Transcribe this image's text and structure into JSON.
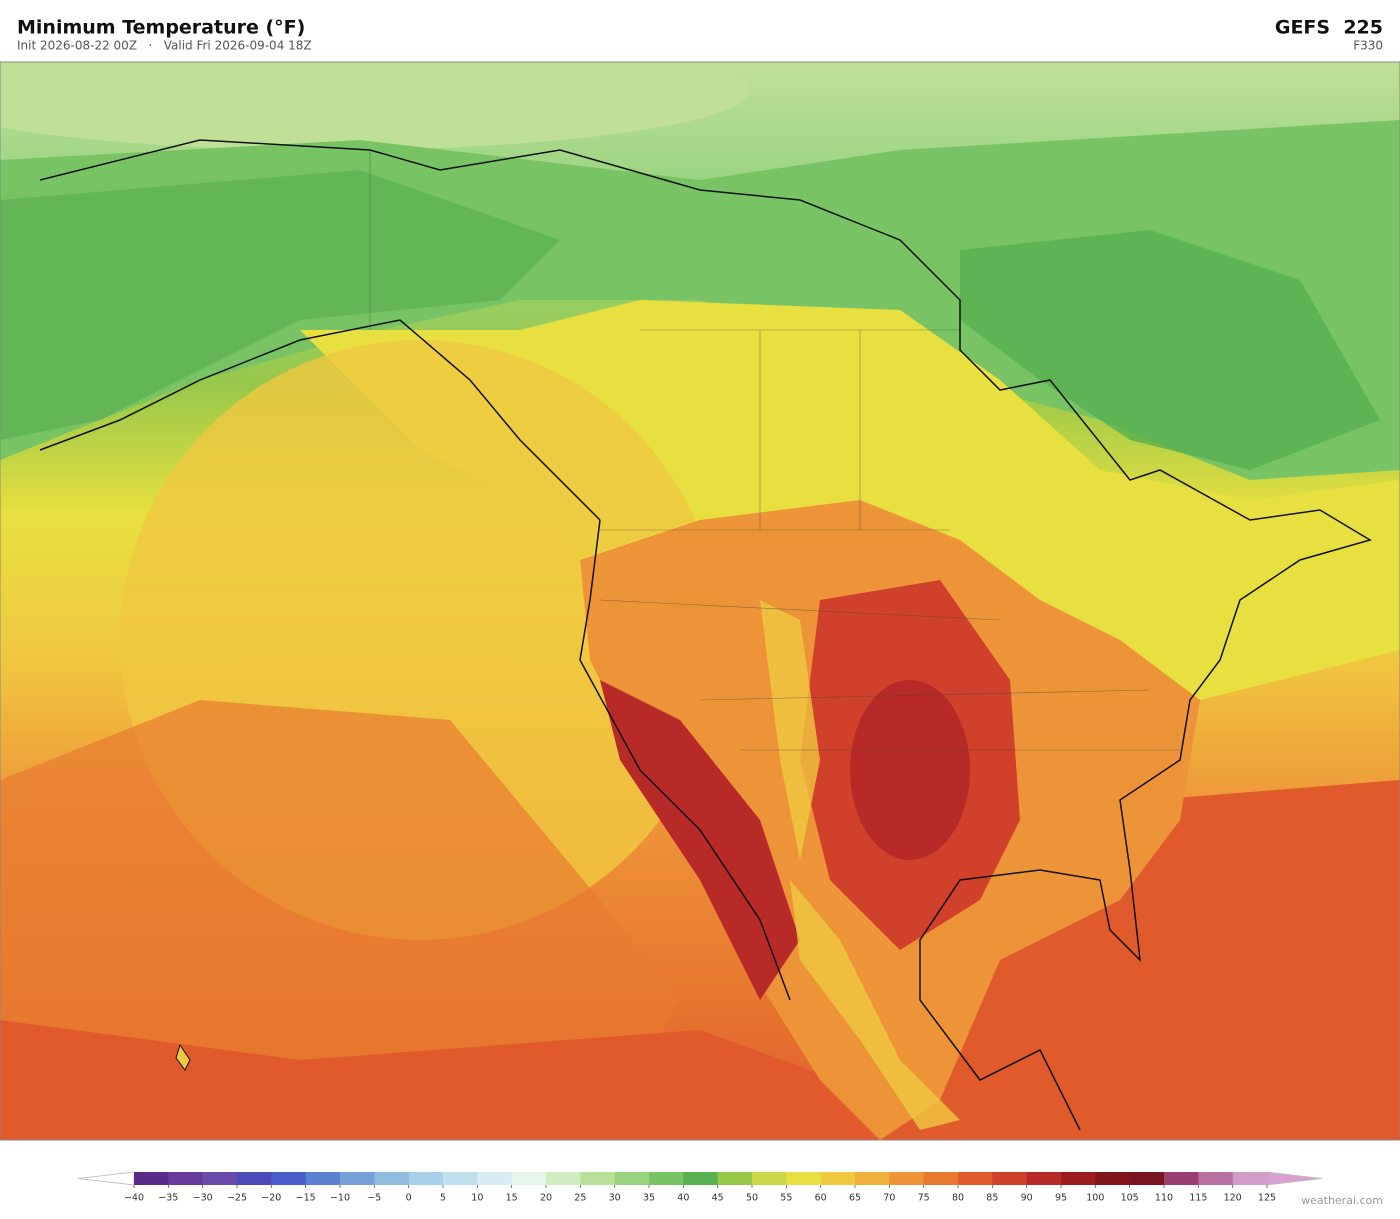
{
  "header": {
    "title": "Minimum Temperature  (°F)",
    "subtitle": "Init 2026-08-22 00Z   ·   Valid Fri 2026-09-04 18Z",
    "model": "GEFS  225",
    "forecast_hour": "F330"
  },
  "colorbar": {
    "ticks": [
      {
        "value": -40,
        "label": "−40"
      },
      {
        "value": -35,
        "label": "−35"
      },
      {
        "value": -30,
        "label": "−30"
      },
      {
        "value": -25,
        "label": "−25"
      },
      {
        "value": -20,
        "label": "−20"
      },
      {
        "value": -15,
        "label": "−15"
      },
      {
        "value": -10,
        "label": "−10"
      },
      {
        "value": -5,
        "label": "−5"
      },
      0,
      5,
      10,
      15,
      20,
      25,
      30,
      35,
      40,
      45,
      50,
      55,
      60,
      65,
      70,
      75,
      80,
      85,
      90,
      95,
      100,
      105,
      110,
      115,
      120,
      125
    ],
    "colors": [
      "#5a2a8a",
      "#6a3a9a",
      "#6a4aaa",
      "#4a4ab8",
      "#4a5cc8",
      "#5a80d0",
      "#78a0d8",
      "#90bce0",
      "#a8d0e8",
      "#c0e0ee",
      "#d8ecf2",
      "#e6f4ea",
      "#d0ecc0",
      "#b8e098",
      "#98d480",
      "#78c464",
      "#58b050",
      "#98c84a",
      "#c8d848",
      "#e8e040",
      "#f0c840",
      "#f0b03c",
      "#ee9438",
      "#e87a30",
      "#e05a2c",
      "#d0402a",
      "#b82a28",
      "#9c1c20",
      "#82161c",
      "#7a1420",
      "#9a4070",
      "#b870a0",
      "#d09cc8"
    ],
    "under_color": "#ffffff",
    "over_color": "#d8a0d0"
  },
  "footer": {
    "watermark": "weatherai.com"
  }
}
